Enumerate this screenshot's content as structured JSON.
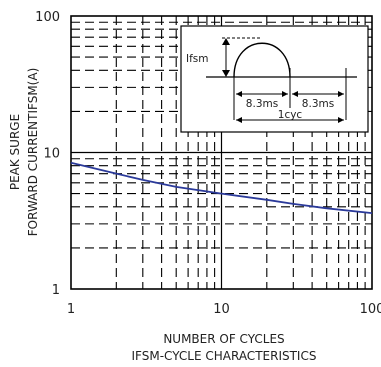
{
  "chart_data": {
    "type": "line",
    "title": "IFSM-CYCLE CHARACTERISTICS",
    "xlabel": "NUMBER OF CYCLES",
    "ylabel_line1": "PEAK SURGE",
    "ylabel_line2": "FORWARD CURRENTIFSM(A)",
    "x_scale": "log",
    "y_scale": "log",
    "xlim": [
      1,
      100
    ],
    "ylim": [
      1,
      100
    ],
    "x_ticks": [
      "1",
      "10",
      "100"
    ],
    "y_ticks": [
      "1",
      "10",
      "100"
    ],
    "grid": "dashed minor, solid major",
    "series": [
      {
        "color": "#2b3a9a",
        "x": [
          1,
          2,
          3,
          5,
          10,
          20,
          30,
          50,
          100
        ],
        "y": [
          8.4,
          7.0,
          6.3,
          5.6,
          5.0,
          4.5,
          4.2,
          3.9,
          3.6
        ]
      }
    ],
    "inset": {
      "label_peak": "Ifsm",
      "label_half_cycle_1": "8.3ms",
      "label_half_cycle_2": "8.3ms",
      "label_cycle": "1cyc"
    }
  }
}
